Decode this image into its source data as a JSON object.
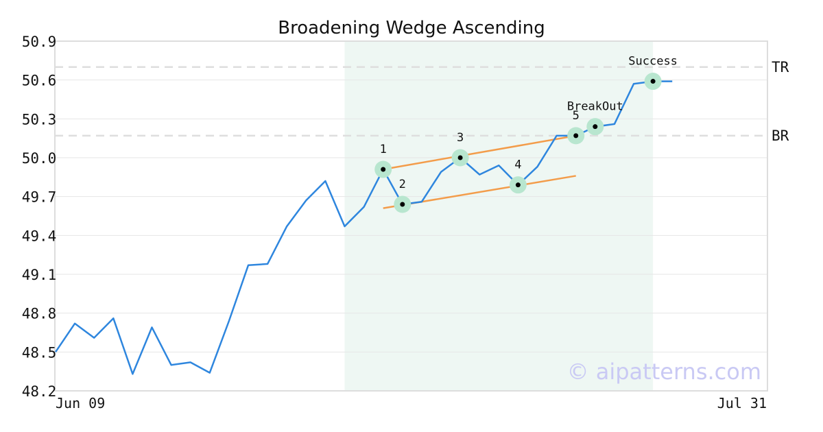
{
  "chart_data": {
    "type": "line",
    "title": "Broadening Wedge Ascending",
    "xlabel": "",
    "ylabel": "",
    "ylim": [
      48.2,
      50.9
    ],
    "yticks": [
      "48.2",
      "48.5",
      "48.8",
      "49.1",
      "49.4",
      "49.7",
      "50.0",
      "50.3",
      "50.6",
      "50.9"
    ],
    "x_tick_labels": [
      "Jun 09",
      "Jul 31"
    ],
    "series": [
      {
        "values": [
          48.5,
          48.72,
          48.61,
          48.76,
          48.33,
          48.69,
          48.4,
          48.42,
          48.34,
          48.74,
          49.17,
          49.18,
          49.47,
          49.67,
          49.82,
          49.47,
          49.62,
          49.91,
          49.64,
          49.66,
          49.89,
          50.0,
          49.87,
          49.94,
          49.79,
          49.93,
          50.17,
          50.17,
          50.24,
          50.26,
          50.57,
          50.59,
          50.59
        ],
        "color": "#2e86de"
      }
    ],
    "highlight_range": {
      "start_index": 15,
      "end_index": 31,
      "color": "#eef7f3"
    },
    "horizontal_lines": [
      {
        "label": "TR",
        "value": 50.7
      },
      {
        "label": "BR",
        "value": 50.17
      }
    ],
    "trendlines": [
      {
        "from": [
          17,
          49.91
        ],
        "to": [
          27,
          50.17
        ],
        "color": "#f39c4a"
      },
      {
        "from": [
          17,
          49.61
        ],
        "to": [
          27,
          49.86
        ],
        "color": "#f39c4a"
      }
    ],
    "markers": [
      {
        "label": "1",
        "index": 17,
        "value": 49.91,
        "label_pos": "above"
      },
      {
        "label": "2",
        "index": 18,
        "value": 49.64,
        "label_pos": "above"
      },
      {
        "label": "3",
        "index": 21,
        "value": 50.0,
        "label_pos": "above"
      },
      {
        "label": "4",
        "index": 24,
        "value": 49.79,
        "label_pos": "above"
      },
      {
        "label": "5",
        "index": 27,
        "value": 50.17,
        "label_pos": "above"
      },
      {
        "label": "BreakOut",
        "index": 28,
        "value": 50.24,
        "label_pos": "above"
      },
      {
        "label": "Success",
        "index": 31,
        "value": 50.59,
        "label_pos": "above"
      }
    ],
    "marker_color": "#b8e6cf",
    "grid": true,
    "legend": "none"
  },
  "watermark": "© aipatterns.com"
}
